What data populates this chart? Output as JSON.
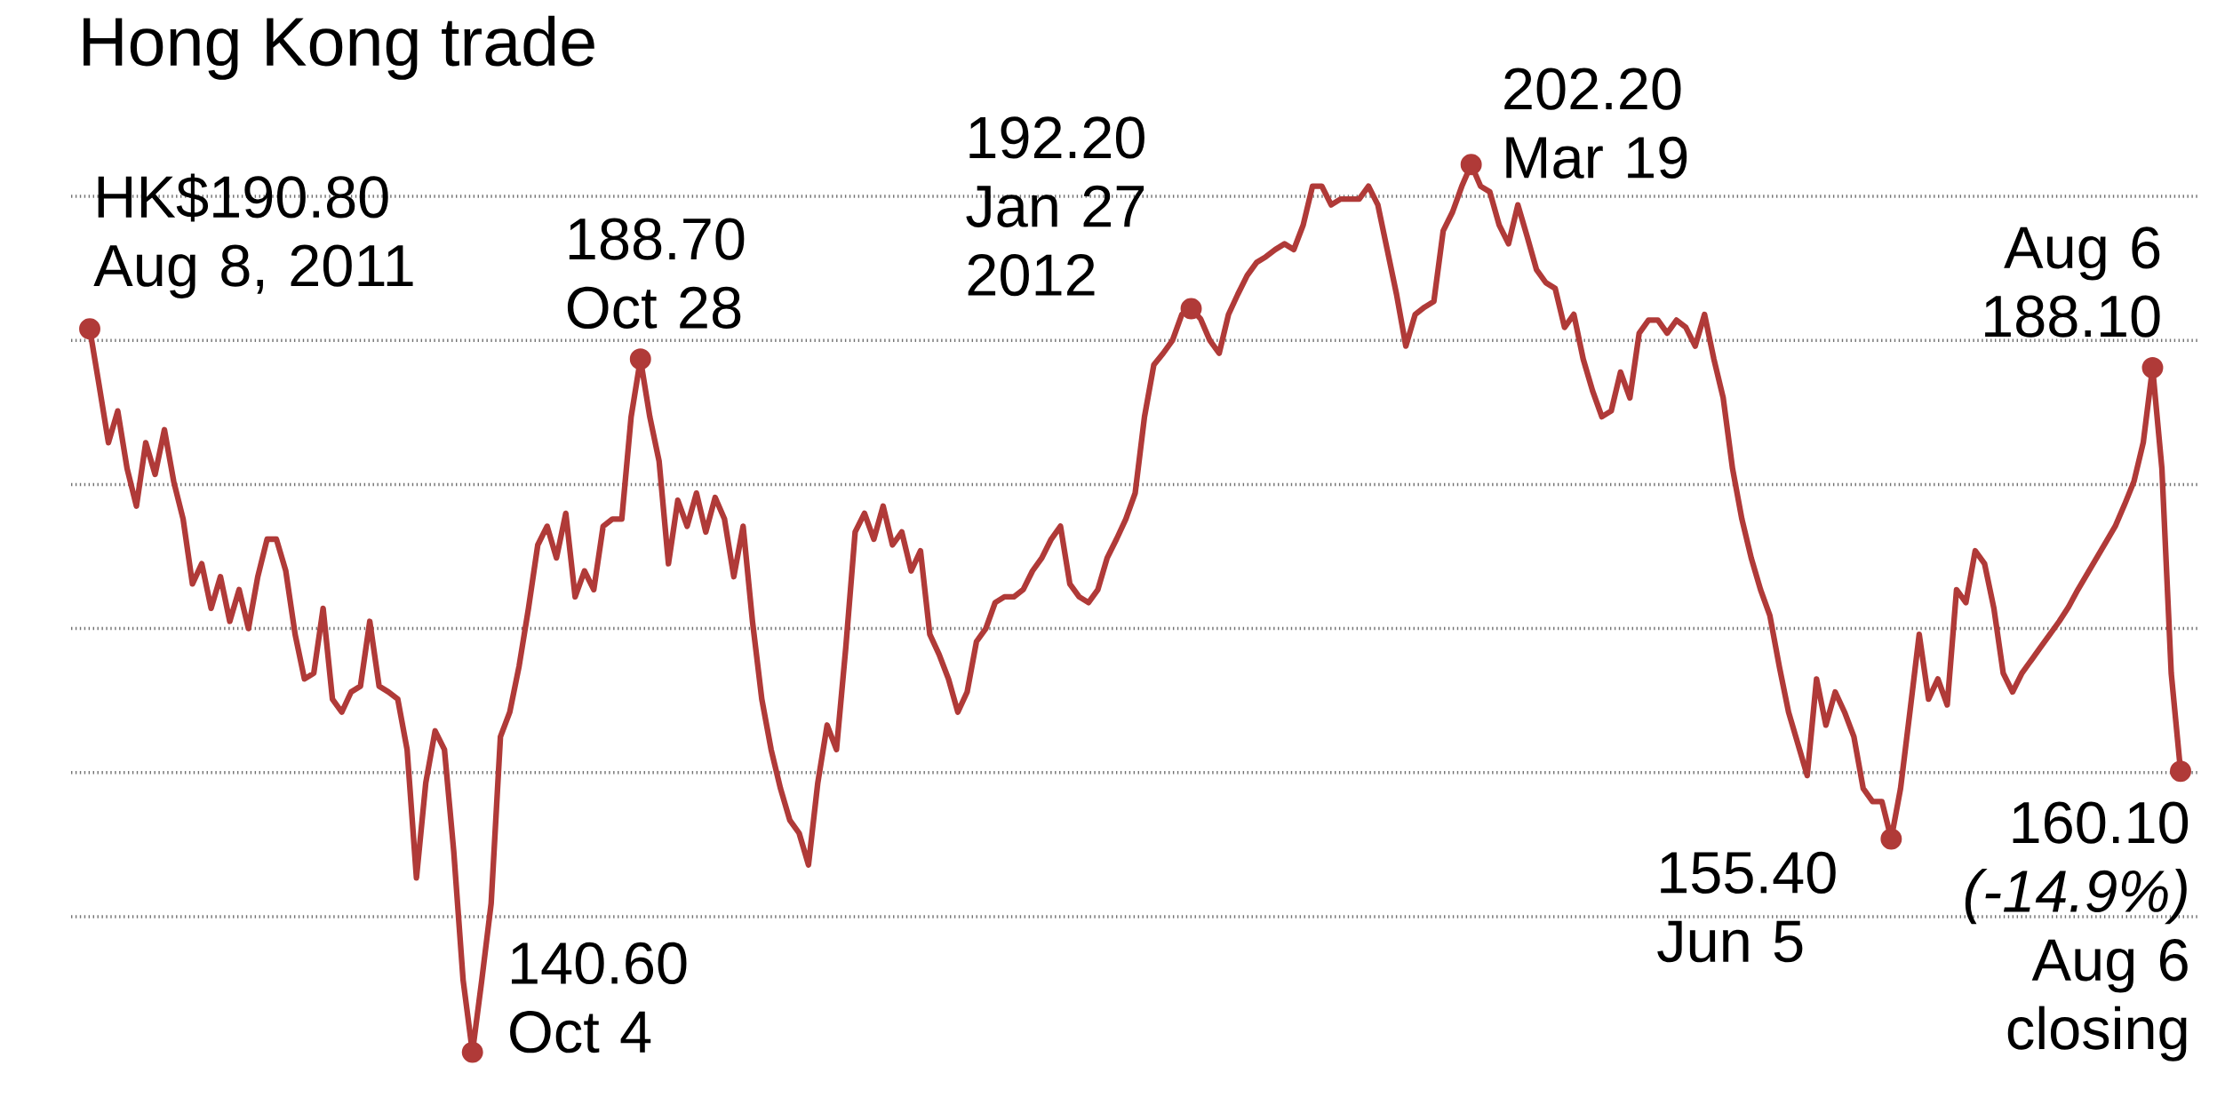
{
  "chart_data": {
    "type": "line",
    "title": "Hong Kong trade",
    "color": "#b03a38",
    "categories": [
      null,
      null,
      null,
      null,
      null,
      null,
      null,
      null,
      null,
      null,
      null,
      null,
      null,
      null,
      null,
      null,
      null,
      null,
      null,
      null,
      null,
      null,
      null,
      null,
      null,
      null,
      null,
      null,
      null,
      null,
      null,
      null,
      null,
      null,
      null,
      null,
      null,
      null,
      null,
      null,
      null,
      null,
      null,
      null,
      null,
      null,
      null,
      null,
      null,
      null,
      null,
      null,
      null,
      null,
      null,
      null,
      null,
      null,
      null,
      null,
      null,
      null,
      null,
      null,
      null,
      null,
      null,
      null,
      null,
      null,
      null,
      null,
      null,
      null,
      null,
      null,
      null,
      null,
      null,
      null,
      null,
      null,
      null,
      null,
      null,
      null,
      null,
      null,
      null,
      null,
      null,
      null,
      null,
      null,
      null,
      null,
      null,
      null,
      null,
      null,
      null,
      null,
      null,
      null,
      null,
      null,
      null,
      null,
      null,
      null,
      null,
      null,
      null,
      null,
      null,
      null,
      null,
      null,
      null,
      null,
      null,
      null,
      null,
      null,
      null,
      null,
      null,
      null,
      null,
      null,
      null,
      null,
      null,
      null,
      null,
      null,
      null,
      null,
      null,
      null,
      null,
      null,
      null,
      null,
      null,
      null,
      null,
      null,
      null,
      null,
      null,
      null,
      null,
      null,
      null,
      null,
      null,
      null,
      null,
      null,
      null,
      null,
      null,
      null,
      null,
      null,
      null,
      null,
      null,
      null,
      null,
      null,
      null,
      null,
      null,
      null,
      null,
      null,
      null,
      null,
      null,
      null,
      null,
      null,
      null,
      null,
      null,
      null,
      null,
      null,
      null,
      null,
      null,
      null,
      null,
      null,
      null,
      null,
      null,
      null,
      null,
      null,
      null,
      null,
      null,
      null,
      null,
      null,
      null,
      null,
      null,
      null,
      null,
      null,
      null,
      null,
      null,
      null,
      null,
      null,
      null,
      null,
      null,
      null,
      null
    ],
    "values": [
      190.8,
      186.9,
      182.9,
      185.1,
      181.1,
      178.5,
      182.9,
      180.7,
      183.8,
      180.2,
      177.6,
      173.1,
      174.5,
      171.4,
      173.6,
      170.5,
      172.7,
      170.0,
      173.6,
      176.2,
      176.2,
      174.0,
      169.6,
      166.5,
      166.9,
      171.4,
      165.1,
      164.2,
      165.6,
      166.0,
      170.5,
      166.0,
      165.6,
      165.1,
      161.6,
      152.7,
      159.3,
      162.9,
      161.6,
      154.5,
      145.6,
      140.6,
      145.6,
      150.9,
      162.5,
      164.2,
      167.4,
      171.4,
      175.8,
      177.1,
      174.9,
      178.0,
      172.2,
      174.0,
      172.7,
      177.1,
      177.6,
      177.6,
      184.7,
      188.7,
      184.7,
      181.6,
      174.5,
      178.9,
      177.1,
      179.4,
      176.7,
      179.1,
      177.6,
      173.6,
      177.1,
      170.5,
      165.1,
      161.6,
      158.9,
      156.7,
      155.8,
      153.6,
      159.3,
      163.3,
      161.6,
      168.7,
      176.7,
      178.0,
      176.2,
      178.5,
      175.8,
      176.7,
      174.0,
      175.4,
      169.6,
      168.2,
      166.5,
      164.2,
      165.6,
      169.1,
      170.0,
      171.8,
      172.2,
      172.2,
      172.7,
      174.0,
      174.9,
      176.2,
      177.1,
      173.1,
      172.2,
      171.8,
      172.7,
      174.9,
      176.2,
      177.6,
      179.4,
      184.7,
      188.3,
      189.1,
      190.0,
      191.8,
      192.2,
      191.5,
      190.0,
      189.1,
      191.8,
      193.2,
      194.5,
      195.4,
      195.8,
      196.3,
      196.7,
      196.3,
      198.0,
      200.7,
      200.7,
      199.4,
      199.8,
      199.8,
      199.8,
      200.7,
      199.4,
      196.3,
      193.2,
      189.6,
      191.8,
      192.3,
      192.7,
      197.6,
      198.9,
      200.7,
      202.2,
      200.7,
      200.3,
      198.0,
      196.7,
      199.4,
      197.2,
      194.9,
      194.0,
      193.6,
      190.9,
      191.8,
      188.7,
      186.5,
      184.7,
      185.1,
      187.8,
      186.0,
      190.5,
      191.4,
      191.4,
      190.5,
      191.4,
      190.9,
      189.6,
      191.8,
      188.7,
      186.0,
      181.1,
      177.6,
      174.9,
      172.7,
      170.9,
      167.4,
      164.2,
      162.0,
      159.8,
      166.5,
      163.3,
      165.6,
      164.2,
      162.5,
      158.9,
      158.0,
      158.0,
      155.4,
      158.9,
      164.2,
      169.6,
      165.1,
      166.5,
      164.7,
      172.7,
      171.8,
      175.4,
      174.5,
      171.4,
      166.9,
      165.6,
      166.9,
      167.8,
      168.7,
      169.6,
      170.5,
      171.5,
      172.7,
      173.8,
      174.9,
      176.0,
      177.1,
      178.6,
      180.2,
      182.9,
      188.1,
      181.1,
      166.9,
      160.1
    ],
    "value_labels": [
      "HK$190.80 Aug 8, 2011",
      null,
      null,
      null,
      null,
      null,
      null,
      null,
      null,
      null,
      null,
      null,
      null,
      null,
      null,
      null,
      null,
      null,
      null,
      null,
      null,
      null,
      null,
      null,
      null,
      null,
      null,
      null,
      null,
      null,
      null,
      null,
      null,
      null,
      null,
      null,
      null,
      null,
      null,
      null,
      null,
      "140.60 Oct 4",
      null,
      null,
      null,
      null,
      null,
      null,
      null,
      null,
      null,
      null,
      null,
      null,
      null,
      null,
      null,
      null,
      null,
      "188.70 Oct 28",
      null,
      null,
      null,
      null,
      null,
      null,
      null,
      null,
      null,
      null,
      null,
      null,
      null,
      null,
      null,
      null,
      null,
      null,
      null,
      null,
      null,
      null,
      null,
      null,
      null,
      null,
      null,
      null,
      null,
      null,
      null,
      null,
      null,
      null,
      null,
      null,
      null,
      null,
      null,
      null,
      null,
      null,
      null,
      null,
      null,
      null,
      null,
      null,
      null,
      null,
      null,
      null,
      null,
      null,
      null,
      null,
      null,
      null,
      "192.20 Jan 27 2012",
      null,
      null,
      null,
      null,
      null,
      null,
      null,
      null,
      null,
      null,
      null,
      null,
      null,
      null,
      null,
      null,
      null,
      null,
      null,
      null,
      null,
      null,
      null,
      null,
      null,
      null,
      null,
      null,
      null,
      "202.20 Mar 19",
      null,
      null,
      null,
      null,
      null,
      null,
      null,
      null,
      null,
      null,
      null,
      null,
      null,
      null,
      null,
      null,
      null,
      null,
      null,
      null,
      null,
      null,
      null,
      null,
      null,
      null,
      null,
      null,
      null,
      null,
      null,
      null,
      null,
      null,
      null,
      null,
      null,
      null,
      null,
      null,
      null,
      null,
      null,
      null,
      "155.40 Jun 5",
      null,
      null,
      null,
      null,
      null,
      null,
      null,
      null,
      null,
      null,
      null,
      null,
      null,
      null,
      null,
      null,
      null,
      null,
      null,
      null,
      null,
      null,
      null,
      null,
      null,
      null,
      null,
      "Aug 6 188.10",
      null,
      null,
      "160.10 *(-14.9%)* Aug 6 closing"
    ],
    "yticks": [
      {
        "value": 150,
        "label": null
      },
      {
        "value": 160,
        "label": null
      },
      {
        "value": 170,
        "label": null
      },
      {
        "value": 180,
        "label": null
      },
      {
        "value": 190,
        "label": null
      },
      {
        "value": 200,
        "label": null
      }
    ],
    "grid": "y"
  }
}
